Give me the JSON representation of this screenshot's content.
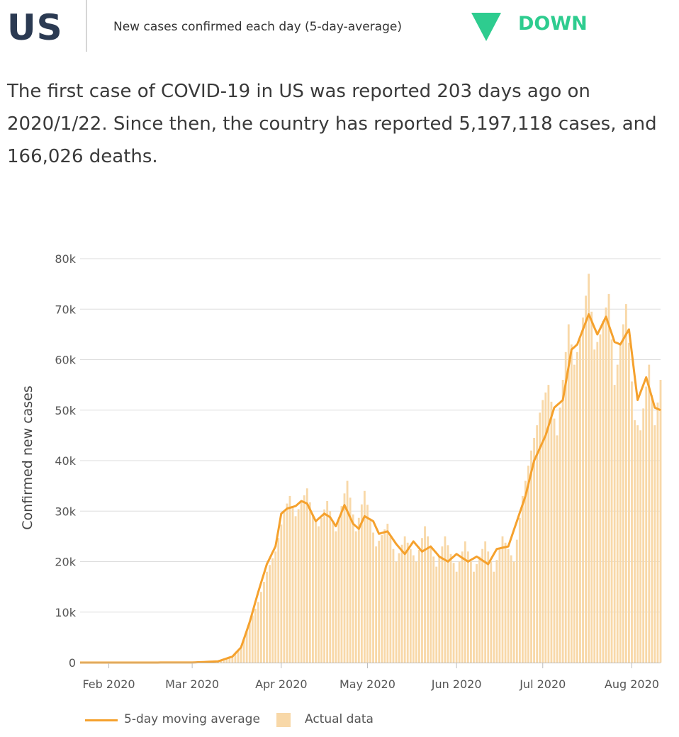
{
  "header": {
    "country": "US",
    "subtitle": "New cases confirmed each day (5-day-average)",
    "trend_label": "DOWN",
    "trend_icon": "down-triangle-icon",
    "trend_color": "#2ecc8f"
  },
  "summary": "The first case of COVID-19 in US was reported 203 days ago on 2020/1/22. Since then, the country has reported 5,197,118 cases, and 166,026 deaths.",
  "chart_data": {
    "type": "bar",
    "ylabel": "Confirmed new cases",
    "xlabel": "",
    "ylim": [
      0,
      80000
    ],
    "y_ticks": [
      "0",
      "10k",
      "20k",
      "30k",
      "40k",
      "50k",
      "60k",
      "70k",
      "80k"
    ],
    "x_ticks": [
      "Feb 2020",
      "Mar 2020",
      "Apr 2020",
      "May 2020",
      "Jun 2020",
      "Jul 2020",
      "Aug 2020"
    ],
    "grid": "horizontal",
    "colors": {
      "line": "#f5a12d",
      "bars": "#f8d8a8"
    },
    "legend": [
      "5-day moving average",
      "Actual data"
    ],
    "legend_position": "bottom",
    "start_date": "2020-01-22",
    "end_date": "2020-08-11",
    "actual_anchors": [
      [
        "2020-01-22",
        0
      ],
      [
        "2020-03-01",
        10
      ],
      [
        "2020-03-10",
        250
      ],
      [
        "2020-03-15",
        1200
      ],
      [
        "2020-03-18",
        3000
      ],
      [
        "2020-03-21",
        8000
      ],
      [
        "2020-03-24",
        12000
      ],
      [
        "2020-03-27",
        18000
      ],
      [
        "2020-03-30",
        22000
      ],
      [
        "2020-04-02",
        30000
      ],
      [
        "2020-04-04",
        33000
      ],
      [
        "2020-04-06",
        29000
      ],
      [
        "2020-04-10",
        34500
      ],
      [
        "2020-04-12",
        29000
      ],
      [
        "2020-04-14",
        27000
      ],
      [
        "2020-04-17",
        32000
      ],
      [
        "2020-04-20",
        26000
      ],
      [
        "2020-04-24",
        36000
      ],
      [
        "2020-04-27",
        26000
      ],
      [
        "2020-04-30",
        34000
      ],
      [
        "2020-05-04",
        23000
      ],
      [
        "2020-05-08",
        27500
      ],
      [
        "2020-05-11",
        20000
      ],
      [
        "2020-05-14",
        25000
      ],
      [
        "2020-05-18",
        20000
      ],
      [
        "2020-05-21",
        27000
      ],
      [
        "2020-05-25",
        19000
      ],
      [
        "2020-05-28",
        25000
      ],
      [
        "2020-06-01",
        18000
      ],
      [
        "2020-06-04",
        24000
      ],
      [
        "2020-06-07",
        18000
      ],
      [
        "2020-06-11",
        24000
      ],
      [
        "2020-06-14",
        18000
      ],
      [
        "2020-06-17",
        25000
      ],
      [
        "2020-06-21",
        20000
      ],
      [
        "2020-06-24",
        33000
      ],
      [
        "2020-06-27",
        42000
      ],
      [
        "2020-07-01",
        52000
      ],
      [
        "2020-07-03",
        55000
      ],
      [
        "2020-07-06",
        45000
      ],
      [
        "2020-07-10",
        67000
      ],
      [
        "2020-07-12",
        59000
      ],
      [
        "2020-07-14",
        64000
      ],
      [
        "2020-07-17",
        77000
      ],
      [
        "2020-07-19",
        62000
      ],
      [
        "2020-07-21",
        65000
      ],
      [
        "2020-07-24",
        73000
      ],
      [
        "2020-07-26",
        55000
      ],
      [
        "2020-07-30",
        71000
      ],
      [
        "2020-08-02",
        48000
      ],
      [
        "2020-08-04",
        46000
      ],
      [
        "2020-08-07",
        59000
      ],
      [
        "2020-08-09",
        47000
      ],
      [
        "2020-08-11",
        56000
      ]
    ],
    "average_anchors": [
      [
        "2020-01-22",
        0
      ],
      [
        "2020-03-01",
        10
      ],
      [
        "2020-03-10",
        250
      ],
      [
        "2020-03-15",
        1200
      ],
      [
        "2020-03-18",
        3000
      ],
      [
        "2020-03-21",
        8000
      ],
      [
        "2020-03-24",
        14000
      ],
      [
        "2020-03-27",
        19500
      ],
      [
        "2020-03-30",
        23000
      ],
      [
        "2020-04-01",
        29500
      ],
      [
        "2020-04-03",
        30500
      ],
      [
        "2020-04-06",
        31000
      ],
      [
        "2020-04-08",
        32000
      ],
      [
        "2020-04-10",
        31500
      ],
      [
        "2020-04-13",
        28000
      ],
      [
        "2020-04-16",
        29500
      ],
      [
        "2020-04-18",
        28800
      ],
      [
        "2020-04-20",
        27000
      ],
      [
        "2020-04-23",
        31200
      ],
      [
        "2020-04-26",
        27500
      ],
      [
        "2020-04-28",
        26500
      ],
      [
        "2020-04-30",
        29000
      ],
      [
        "2020-05-03",
        28000
      ],
      [
        "2020-05-05",
        25500
      ],
      [
        "2020-05-08",
        26000
      ],
      [
        "2020-05-11",
        23500
      ],
      [
        "2020-05-14",
        21500
      ],
      [
        "2020-05-17",
        24000
      ],
      [
        "2020-05-20",
        22000
      ],
      [
        "2020-05-23",
        23000
      ],
      [
        "2020-05-26",
        21000
      ],
      [
        "2020-05-29",
        20000
      ],
      [
        "2020-06-01",
        21500
      ],
      [
        "2020-06-05",
        20000
      ],
      [
        "2020-06-08",
        21000
      ],
      [
        "2020-06-12",
        19500
      ],
      [
        "2020-06-15",
        22500
      ],
      [
        "2020-06-19",
        23000
      ],
      [
        "2020-06-22",
        28000
      ],
      [
        "2020-06-25",
        33000
      ],
      [
        "2020-06-28",
        40000
      ],
      [
        "2020-07-02",
        45000
      ],
      [
        "2020-07-05",
        50500
      ],
      [
        "2020-07-08",
        52000
      ],
      [
        "2020-07-11",
        62000
      ],
      [
        "2020-07-13",
        63000
      ],
      [
        "2020-07-17",
        69000
      ],
      [
        "2020-07-20",
        65000
      ],
      [
        "2020-07-23",
        68500
      ],
      [
        "2020-07-26",
        63500
      ],
      [
        "2020-07-28",
        63000
      ],
      [
        "2020-07-31",
        66000
      ],
      [
        "2020-08-03",
        52000
      ],
      [
        "2020-08-06",
        56500
      ],
      [
        "2020-08-09",
        50500
      ],
      [
        "2020-08-11",
        50000
      ]
    ]
  }
}
